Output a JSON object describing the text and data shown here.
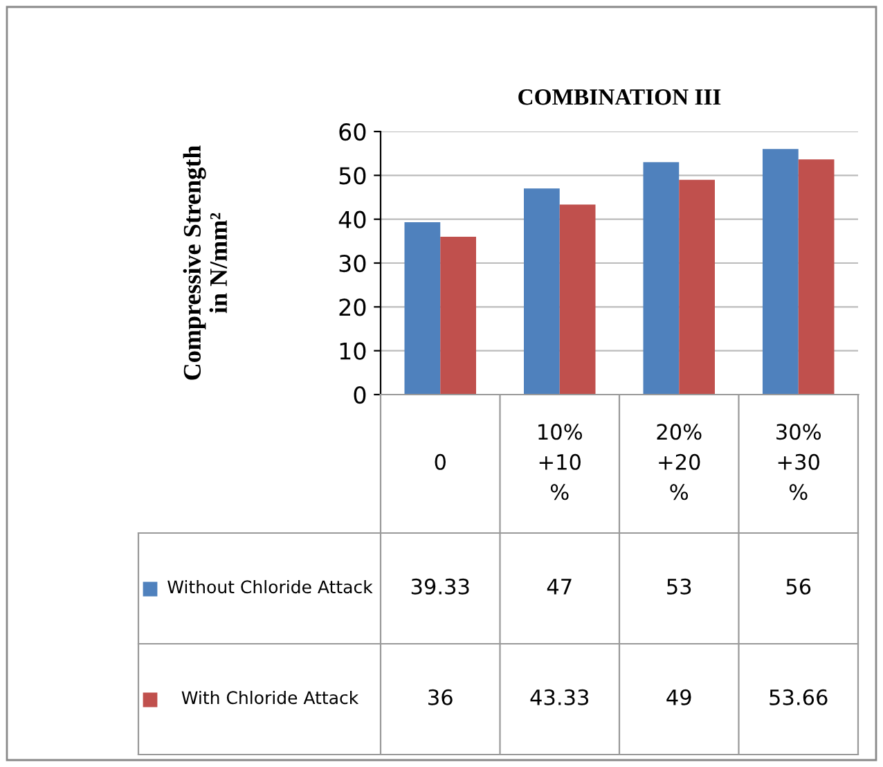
{
  "chart_data": {
    "type": "bar",
    "title": "COMBINATION III",
    "ylabel": "Compressive Strength\nin N/mm²",
    "categories": [
      "0",
      "10%\n+10\n%",
      "20%\n+20\n%",
      "30%\n+30\n%"
    ],
    "series": [
      {
        "name": "Without Chloride Attack",
        "color": "#4f81bd",
        "values": [
          39.33,
          47,
          53,
          56
        ]
      },
      {
        "name": "With Chloride Attack",
        "color": "#c0504d",
        "values": [
          36,
          43.33,
          49,
          53.66
        ]
      }
    ],
    "ylim": [
      0,
      60
    ],
    "yticks": [
      0,
      10,
      20,
      30,
      40,
      50,
      60
    ],
    "grid": "y",
    "legend": "bottom",
    "data_labels": true
  }
}
